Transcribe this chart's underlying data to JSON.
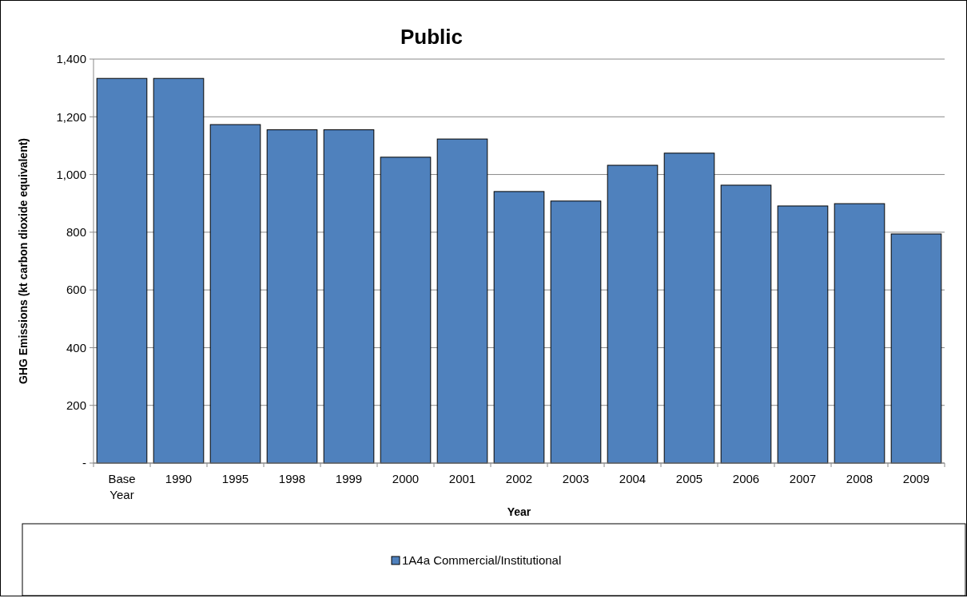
{
  "chart_data": {
    "type": "bar",
    "title": "Public",
    "xlabel": "Year",
    "ylabel": "GHG Emissions (kt carbon dioxide equivalent)",
    "categories": [
      "Base Year",
      "1990",
      "1995",
      "1998",
      "1999",
      "2000",
      "2001",
      "2002",
      "2003",
      "2004",
      "2005",
      "2006",
      "2007",
      "2008",
      "2009"
    ],
    "series": [
      {
        "name": "1A4a Commercial/Institutional",
        "color": "#4f81bd",
        "values": [
          1333,
          1333,
          1173,
          1155,
          1155,
          1060,
          1123,
          941,
          908,
          1032,
          1074,
          963,
          891,
          899,
          794
        ]
      }
    ],
    "ylim": [
      0,
      1400
    ],
    "yticks": [
      {
        "value": 0,
        "label": "-"
      },
      {
        "value": 200,
        "label": "200"
      },
      {
        "value": 400,
        "label": "400"
      },
      {
        "value": 600,
        "label": "600"
      },
      {
        "value": 800,
        "label": "800"
      },
      {
        "value": 1000,
        "label": "1,000"
      },
      {
        "value": 1200,
        "label": "1,200"
      },
      {
        "value": 1400,
        "label": "1,400"
      }
    ],
    "grid": "y",
    "legend": "bottom"
  }
}
